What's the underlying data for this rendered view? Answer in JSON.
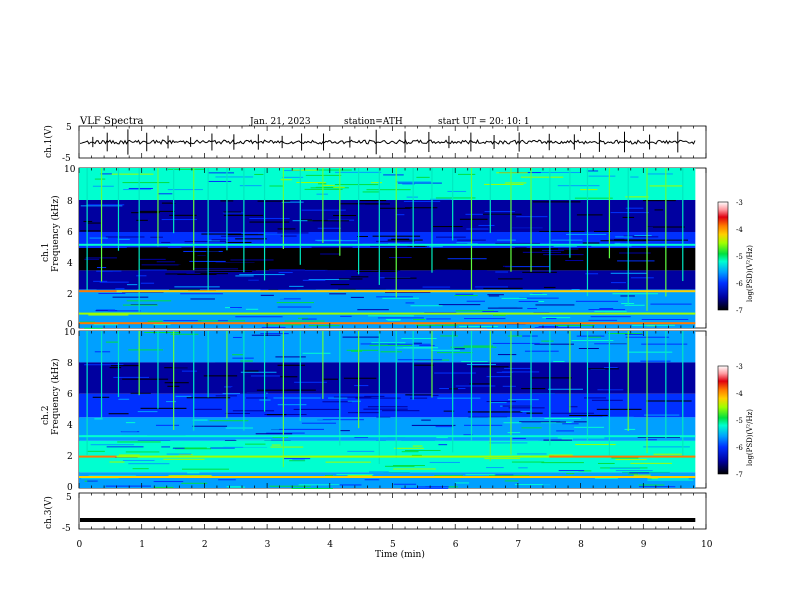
{
  "header": {
    "title": "VLF  Spectra",
    "date": "Jan. 21, 2023",
    "station": "station=ATH",
    "start": "start  UT  =    20: 10: 1"
  },
  "colorbar": {
    "label": "log(PSD)(V²/Hz)",
    "ticks": [
      "-3",
      "-4",
      "-5",
      "-6",
      "-7"
    ],
    "colors": [
      "#ffffff",
      "#ff9aa0",
      "#e00010",
      "#ff7a00",
      "#ffd000",
      "#a0ff00",
      "#00e040",
      "#00ffd0",
      "#00a0ff",
      "#0030ff",
      "#0000a0",
      "#000000"
    ]
  },
  "chart_data": [
    {
      "type": "line",
      "name": "ch1-waveform",
      "ylabel": "ch.1(V)",
      "ylim": [
        -5,
        5
      ],
      "xlim": [
        0,
        10
      ],
      "y_ticks": [
        "5",
        "-5"
      ],
      "mean_level": 0,
      "spike_times_min": [
        0.22,
        0.45,
        0.78,
        1.08,
        1.42,
        1.78,
        2.12,
        2.47,
        2.86,
        3.24,
        3.55,
        3.9,
        4.32,
        4.74,
        5.2,
        5.58,
        5.9,
        6.25,
        6.62,
        7.02,
        7.5,
        7.9,
        8.3,
        8.7,
        9.1,
        9.55
      ]
    },
    {
      "type": "heatmap",
      "name": "ch1-spectrogram",
      "ylabel": "ch.1\nFrequency  (kHz)",
      "ylim": [
        0,
        10
      ],
      "xlim": [
        0,
        9.83
      ],
      "y_ticks": [
        "0",
        "2",
        "4",
        "6",
        "8",
        "10"
      ],
      "z_range": [
        -7,
        -3
      ],
      "z_label": "log(PSD)(V²/Hz)",
      "bands": [
        {
          "f_low": 8.0,
          "f_high": 10.0,
          "log_psd": -5.0
        },
        {
          "f_low": 6.0,
          "f_high": 8.0,
          "log_psd": -6.3
        },
        {
          "f_low": 5.0,
          "f_high": 6.0,
          "log_psd": -6.0
        },
        {
          "f_low": 3.6,
          "f_high": 5.0,
          "log_psd": -6.6
        },
        {
          "f_low": 2.4,
          "f_high": 3.6,
          "log_psd": -6.1
        },
        {
          "f_low": 1.0,
          "f_high": 2.4,
          "log_psd": -5.6
        },
        {
          "f_low": 0.0,
          "f_high": 1.0,
          "log_psd": -5.2
        }
      ],
      "lines": [
        {
          "f": 2.3,
          "log_psd": -3.6,
          "t0": 0.0,
          "t1": 0.6
        },
        {
          "f": 2.3,
          "log_psd": -4.1,
          "t0": 0.6,
          "t1": 9.83
        },
        {
          "f": 0.9,
          "log_psd": -4.4,
          "t0": 0.0,
          "t1": 9.83
        },
        {
          "f": 0.3,
          "log_psd": -3.8,
          "t0": 0.0,
          "t1": 9.83
        },
        {
          "f": 5.2,
          "log_psd": -5.0,
          "t0": 0.0,
          "t1": 9.83
        }
      ],
      "sferic_times_min": [
        0.12,
        0.35,
        0.62,
        0.95,
        1.25,
        1.5,
        1.82,
        2.05,
        2.35,
        2.62,
        2.95,
        3.25,
        3.52,
        3.88,
        4.15,
        4.45,
        4.78,
        5.05,
        5.32,
        5.62,
        5.95,
        6.25,
        6.55,
        6.88,
        7.2,
        7.5,
        7.82,
        8.1,
        8.45,
        8.75,
        9.05,
        9.35,
        9.62
      ]
    },
    {
      "type": "heatmap",
      "name": "ch2-spectrogram",
      "ylabel": "ch.2\nFrequency  (kHz)",
      "ylim": [
        0,
        10
      ],
      "xlim": [
        0,
        9.83
      ],
      "y_ticks": [
        "0",
        "2",
        "4",
        "6",
        "8",
        "10"
      ],
      "z_range": [
        -7,
        -3
      ],
      "z_label": "log(PSD)(V²/Hz)",
      "bands": [
        {
          "f_low": 8.0,
          "f_high": 10.0,
          "log_psd": -5.4
        },
        {
          "f_low": 6.0,
          "f_high": 8.0,
          "log_psd": -6.3
        },
        {
          "f_low": 4.5,
          "f_high": 6.0,
          "log_psd": -6.0
        },
        {
          "f_low": 3.0,
          "f_high": 4.5,
          "log_psd": -5.6
        },
        {
          "f_low": 1.0,
          "f_high": 3.0,
          "log_psd": -5.0
        },
        {
          "f_low": 0.0,
          "f_high": 1.0,
          "log_psd": -5.2
        }
      ],
      "lines": [
        {
          "f": 2.0,
          "log_psd": -3.6,
          "t0": 0.0,
          "t1": 0.6
        },
        {
          "f": 2.0,
          "log_psd": -4.5,
          "t0": 0.6,
          "t1": 7.5
        },
        {
          "f": 2.0,
          "log_psd": -3.8,
          "t0": 7.5,
          "t1": 9.83
        },
        {
          "f": 0.7,
          "log_psd": -4.0,
          "t0": 0.0,
          "t1": 9.83
        },
        {
          "f": 3.3,
          "log_psd": -5.0,
          "t0": 0.0,
          "t1": 9.83
        }
      ],
      "sferic_times_min": [
        0.12,
        0.35,
        0.62,
        0.95,
        1.25,
        1.5,
        1.82,
        2.05,
        2.35,
        2.62,
        2.95,
        3.25,
        3.52,
        3.88,
        4.15,
        4.45,
        4.78,
        5.05,
        5.32,
        5.62,
        5.95,
        6.25,
        6.55,
        6.88,
        7.2,
        7.5,
        7.82,
        8.1,
        8.45,
        8.75,
        9.05,
        9.35,
        9.62
      ]
    },
    {
      "type": "line",
      "name": "ch3-waveform",
      "ylabel": "ch.3(V)",
      "ylim": [
        -5,
        5
      ],
      "xlim": [
        0,
        10
      ],
      "y_ticks": [
        "5",
        "-5"
      ],
      "mean_level": -2.5
    }
  ],
  "xaxis": {
    "label": "Time  (min)",
    "ticks": [
      "0",
      "1",
      "2",
      "3",
      "4",
      "5",
      "6",
      "7",
      "8",
      "9",
      "10"
    ],
    "range": [
      0,
      10
    ]
  }
}
